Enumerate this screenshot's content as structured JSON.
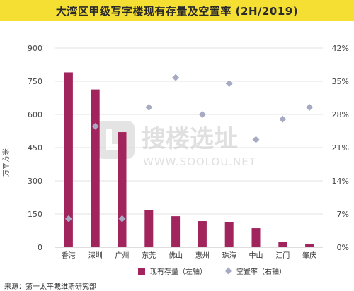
{
  "header": {
    "title": "大湾区甲级写字楼现有存量及空置率 (2H/2019)"
  },
  "source": "来源：第一太平戴维斯研究部",
  "watermark": {
    "cn": "搜楼选址",
    "en": "WWW.SOOLOU.NET"
  },
  "colors": {
    "bar": "#a1245d",
    "marker": "#a6aac3",
    "title_bg": "#f5df33",
    "grid": "#e3e3e3"
  },
  "chart_data": {
    "type": "bar",
    "categories": [
      "香港",
      "深圳",
      "广州",
      "东莞",
      "佛山",
      "惠州",
      "珠海",
      "中山",
      "江门",
      "肇庆"
    ],
    "ylabel": "万平方米",
    "ylim": [
      0,
      900
    ],
    "yticks": [
      "0",
      "150",
      "300",
      "450",
      "600",
      "750",
      "900"
    ],
    "y2lim": [
      0,
      42
    ],
    "y2ticks": [
      "0%",
      "7%",
      "14%",
      "21%",
      "28%",
      "35%",
      "42%"
    ],
    "grid": true,
    "legend_position": "bottom",
    "series": [
      {
        "name": "现有存量（左轴）",
        "type": "bar",
        "axis": "left",
        "values": [
          790,
          713,
          520,
          167,
          140,
          118,
          114,
          86,
          23,
          15
        ]
      },
      {
        "name": "空置率（右轴）",
        "type": "scatter",
        "axis": "right",
        "values": [
          6.0,
          25.5,
          6.0,
          29.5,
          35.8,
          28.0,
          34.5,
          22.7,
          27.0,
          29.5
        ]
      }
    ]
  }
}
